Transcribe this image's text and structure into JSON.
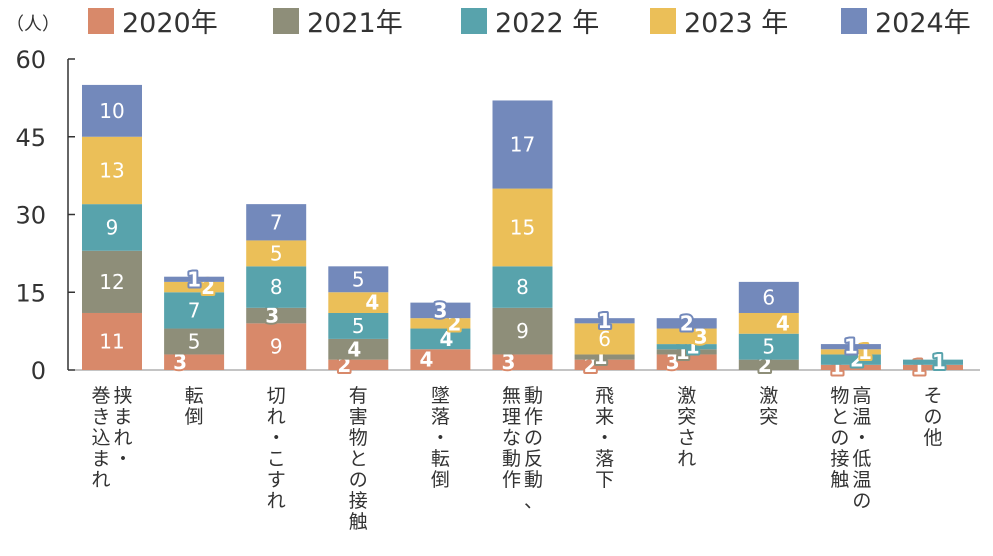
{
  "chart_data": {
    "type": "bar",
    "stacked": true,
    "unit_label": "（人）",
    "ylim": [
      0,
      60
    ],
    "yticks": [
      0,
      15,
      30,
      45,
      60
    ],
    "grid": false,
    "legend_position": "top",
    "categories": [
      [
        "挟まれ・",
        "巻き込まれ"
      ],
      [
        "転倒"
      ],
      [
        "切れ・こすれ"
      ],
      [
        "有害物との接触"
      ],
      [
        "墜落・転倒"
      ],
      [
        "動作の反動、",
        "無理な動作"
      ],
      [
        "飛来・落下"
      ],
      [
        "激突され"
      ],
      [
        "激突"
      ],
      [
        "高温・低温の",
        "物との接触"
      ],
      [
        "その他"
      ]
    ],
    "series": [
      {
        "name": "2020年",
        "color": "#d8896a",
        "values": [
          11,
          3,
          9,
          2,
          4,
          3,
          2,
          3,
          0,
          1,
          1
        ]
      },
      {
        "name": "2021年",
        "color": "#8e8e79",
        "values": [
          12,
          5,
          3,
          4,
          0,
          9,
          1,
          1,
          2,
          0,
          0
        ]
      },
      {
        "name": "2022 年",
        "color": "#58a3ac",
        "values": [
          9,
          7,
          8,
          5,
          4,
          8,
          0,
          1,
          5,
          2,
          1
        ]
      },
      {
        "name": "2023 年",
        "color": "#ebbf58",
        "values": [
          13,
          2,
          5,
          4,
          2,
          15,
          6,
          3,
          4,
          1,
          0
        ]
      },
      {
        "name": "2024年",
        "color": "#7389bb",
        "values": [
          10,
          1,
          7,
          5,
          3,
          17,
          1,
          2,
          6,
          1,
          0
        ]
      }
    ]
  }
}
